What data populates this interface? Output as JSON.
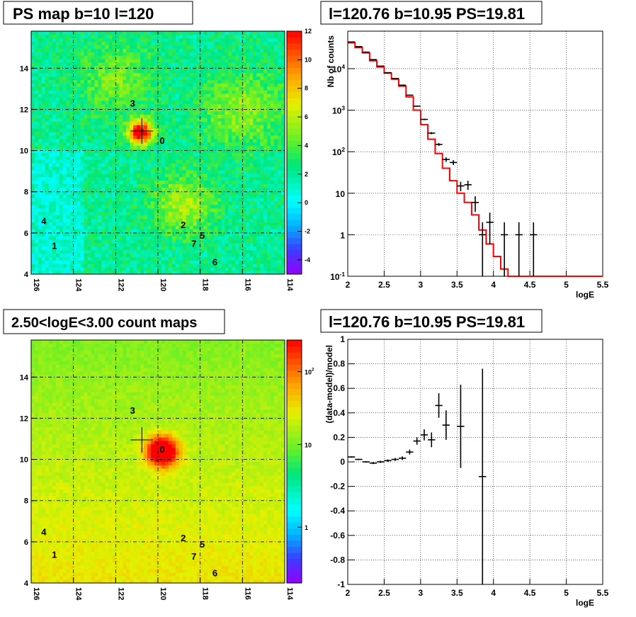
{
  "panels": {
    "tl": {
      "title": "PS map b=10 l=120"
    },
    "tr": {
      "title": "l=120.76 b=10.95 PS=19.81"
    },
    "bl": {
      "title": "2.50<logE<3.00 count maps"
    },
    "br": {
      "title": "l=120.76 b=10.95 PS=19.81"
    }
  },
  "chart_data": [
    {
      "type": "heatmap",
      "title": "PS map b=10 l=120",
      "xlim": [
        126,
        114
      ],
      "ylim": [
        4,
        15.8
      ],
      "xticks": [
        "126",
        "124",
        "122",
        "120",
        "118",
        "116",
        "114"
      ],
      "yticks": [
        "4",
        "6",
        "8",
        "10",
        "12",
        "14"
      ],
      "colorbar": {
        "min": -5,
        "max": 12,
        "ticks": [
          "-4",
          "-2",
          "0",
          "2",
          "4",
          "6",
          "8",
          "10",
          "12"
        ]
      },
      "grid": true,
      "marker": {
        "l": 120.76,
        "b": 10.95
      },
      "sources": [
        {
          "id": "0",
          "l": 119.8,
          "b": 10.5
        },
        {
          "id": "1",
          "l": 124.9,
          "b": 5.4
        },
        {
          "id": "2",
          "l": 118.8,
          "b": 6.4
        },
        {
          "id": "3",
          "l": 121.2,
          "b": 12.3
        },
        {
          "id": "4",
          "l": 125.4,
          "b": 6.6
        },
        {
          "id": "5",
          "l": 117.9,
          "b": 5.9
        },
        {
          "id": "6",
          "l": 117.3,
          "b": 4.6
        },
        {
          "id": "7",
          "l": 118.3,
          "b": 5.5
        }
      ]
    },
    {
      "type": "line",
      "title": "l=120.76 b=10.95 PS=19.81",
      "xlabel": "logE",
      "ylabel": "Nb of counts",
      "xlim": [
        2,
        5.5
      ],
      "ylim": [
        0.1,
        80000
      ],
      "yscale": "log",
      "xticks": [
        "2",
        "2.5",
        "3",
        "3.5",
        "4",
        "4.5",
        "5",
        "5.5"
      ],
      "yticks": [
        "10^{-1}",
        "1",
        "10",
        "10^2",
        "10^3",
        "10^4"
      ],
      "grid": true,
      "series": [
        {
          "style": "points-with-errors",
          "color": "#000000",
          "x": [
            2.05,
            2.15,
            2.25,
            2.35,
            2.45,
            2.55,
            2.65,
            2.75,
            2.85,
            2.95,
            3.05,
            3.15,
            3.25,
            3.35,
            3.45,
            3.55,
            3.65,
            3.75,
            3.85,
            3.95,
            4.15,
            4.35,
            4.55
          ],
          "y": [
            44000,
            34000,
            25000,
            16500,
            11500,
            8000,
            5800,
            4000,
            2300,
            1250,
            600,
            280,
            150,
            65,
            55,
            15,
            16,
            6,
            1,
            2,
            1,
            1,
            1
          ]
        },
        {
          "style": "histogram",
          "color": "#ff0000",
          "x": [
            2.05,
            2.15,
            2.25,
            2.35,
            2.45,
            2.55,
            2.65,
            2.75,
            2.85,
            2.95,
            3.05,
            3.15,
            3.25,
            3.35,
            3.45,
            3.55,
            3.65,
            3.75,
            3.85,
            3.95,
            4.05,
            4.15,
            4.25,
            4.35,
            4.45,
            4.55,
            4.65,
            4.75,
            4.85,
            4.95,
            5.05,
            5.15,
            5.25,
            5.35,
            5.45
          ],
          "y": [
            42000,
            32000,
            24000,
            15500,
            11000,
            7800,
            5600,
            3800,
            2100,
            1000,
            450,
            200,
            90,
            40,
            20,
            10,
            6,
            3,
            1.3,
            0.6,
            0.3,
            0.15,
            0.1,
            0.1,
            0.1,
            0.1,
            0.1,
            0.1,
            0.1,
            0.1,
            0.1,
            0.1,
            0.1,
            0.1,
            0.1
          ]
        }
      ]
    },
    {
      "type": "heatmap",
      "title": "2.50<logE<3.00 count maps",
      "xlim": [
        126,
        114
      ],
      "ylim": [
        4,
        15.8
      ],
      "xticks": [
        "126",
        "124",
        "122",
        "120",
        "118",
        "116",
        "114"
      ],
      "yticks": [
        "4",
        "6",
        "8",
        "10",
        "12",
        "14"
      ],
      "colorbar": {
        "scale": "log",
        "ticks": [
          "1",
          "10",
          "10^2"
        ]
      },
      "grid": true,
      "marker": {
        "l": 120.76,
        "b": 10.95
      },
      "sources": [
        {
          "id": "0",
          "l": 119.8,
          "b": 10.5
        },
        {
          "id": "1",
          "l": 124.9,
          "b": 5.4
        },
        {
          "id": "2",
          "l": 118.8,
          "b": 6.2
        },
        {
          "id": "3",
          "l": 121.2,
          "b": 12.4
        },
        {
          "id": "4",
          "l": 125.4,
          "b": 6.5
        },
        {
          "id": "5",
          "l": 117.9,
          "b": 5.9
        },
        {
          "id": "6",
          "l": 117.3,
          "b": 4.5
        },
        {
          "id": "7",
          "l": 118.3,
          "b": 5.3
        }
      ]
    },
    {
      "type": "scatter",
      "title": "l=120.76 b=10.95 PS=19.81",
      "xlabel": "logE",
      "ylabel": "(data-model)/model",
      "xlim": [
        2,
        5.5
      ],
      "ylim": [
        -1,
        1
      ],
      "xticks": [
        "2",
        "2.5",
        "3",
        "3.5",
        "4",
        "4.5",
        "5",
        "5.5"
      ],
      "yticks": [
        "-1",
        "-0.8",
        "-0.6",
        "-0.4",
        "-0.2",
        "0",
        "0.2",
        "0.4",
        "0.6",
        "0.8",
        "1"
      ],
      "grid": true,
      "series": [
        {
          "style": "points-with-errors",
          "color": "#000000",
          "x": [
            2.05,
            2.15,
            2.25,
            2.35,
            2.45,
            2.55,
            2.65,
            2.75,
            2.85,
            2.95,
            3.05,
            3.15,
            3.25,
            3.35,
            3.55,
            3.85
          ],
          "y": [
            0.04,
            0.02,
            0.0,
            -0.01,
            0.0,
            0.01,
            0.02,
            0.03,
            0.08,
            0.17,
            0.22,
            0.18,
            0.46,
            0.3,
            0.29,
            -0.12
          ],
          "yerr": [
            0.005,
            0.005,
            0.006,
            0.008,
            0.009,
            0.01,
            0.012,
            0.015,
            0.02,
            0.03,
            0.045,
            0.06,
            0.1,
            0.12,
            0.34,
            0.88
          ]
        }
      ]
    }
  ]
}
